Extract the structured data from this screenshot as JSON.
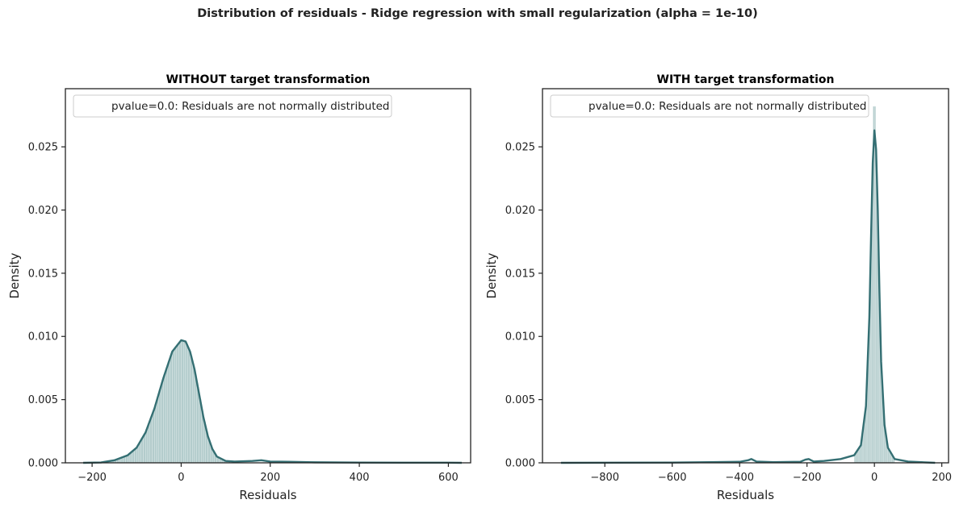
{
  "figure": {
    "suptitle": "Distribution of residuals - Ridge regression with small regularization (alpha = 1e-10)"
  },
  "colors": {
    "kde_line": "#346f73",
    "hist_fill": "#b3cccc",
    "hist_stroke": "#e6efef",
    "axis": "#222222",
    "legend_border": "#cccccc"
  },
  "chart_data": [
    {
      "type": "histogram",
      "title": "WITHOUT target transformation",
      "xlabel": "Residuals",
      "ylabel": "Density",
      "xlim": [
        -260,
        650
      ],
      "ylim": [
        0,
        0.0296
      ],
      "xticks": [
        -200,
        0,
        200,
        400,
        600
      ],
      "xtick_labels": [
        "−200",
        "0",
        "200",
        "400",
        "600"
      ],
      "yticks": [
        0,
        0.005,
        0.01,
        0.015,
        0.02,
        0.025
      ],
      "ytick_labels": [
        "0.000",
        "0.005",
        "0.010",
        "0.015",
        "0.020",
        "0.025"
      ],
      "legend": {
        "label": "pvalue=0.0: Residuals are not normally distributed",
        "position": "upper left"
      },
      "grid": false,
      "hist_range": [
        -190,
        110
      ],
      "bin_width": 5,
      "kde": {
        "x": [
          -220,
          -180,
          -150,
          -120,
          -100,
          -80,
          -60,
          -40,
          -20,
          0,
          10,
          20,
          30,
          40,
          50,
          60,
          70,
          80,
          100,
          120,
          160,
          180,
          200,
          240,
          300,
          400,
          500,
          600,
          630
        ],
        "y": [
          0,
          3e-05,
          0.0002,
          0.0006,
          0.0012,
          0.0024,
          0.0043,
          0.0067,
          0.0088,
          0.0097,
          0.0096,
          0.0088,
          0.0074,
          0.0055,
          0.0036,
          0.0021,
          0.0011,
          0.0005,
          0.00015,
          0.0001,
          0.00015,
          0.0002,
          0.0001,
          8e-05,
          4e-05,
          2e-05,
          1e-05,
          1e-05,
          0
        ]
      }
    },
    {
      "type": "histogram",
      "title": "WITH target transformation",
      "xlabel": "Residuals",
      "ylabel": "Density",
      "xlim": [
        -985,
        220
      ],
      "ylim": [
        0,
        0.0296
      ],
      "xticks": [
        -800,
        -600,
        -400,
        -200,
        0,
        200
      ],
      "xtick_labels": [
        "−800",
        "−600",
        "−400",
        "−200",
        "0",
        "200"
      ],
      "yticks": [
        0,
        0.005,
        0.01,
        0.015,
        0.02,
        0.025
      ],
      "ytick_labels": [
        "0.000",
        "0.005",
        "0.010",
        "0.015",
        "0.020",
        "0.025"
      ],
      "legend": {
        "label": "pvalue=0.0: Residuals are not normally distributed",
        "position": "upper left"
      },
      "grid": false,
      "hist_range": [
        -60,
        60
      ],
      "bin_width": 4,
      "hist_peak": 0.0282,
      "kde": {
        "x": [
          -930,
          -600,
          -400,
          -375,
          -365,
          -350,
          -300,
          -220,
          -205,
          -195,
          -180,
          -150,
          -100,
          -60,
          -40,
          -25,
          -15,
          -10,
          -5,
          0,
          5,
          10,
          15,
          20,
          30,
          40,
          60,
          100,
          180
        ],
        "y": [
          0,
          2e-05,
          8e-05,
          0.0002,
          0.0003,
          0.0001,
          5e-05,
          8e-05,
          0.00025,
          0.0003,
          0.0001,
          0.00015,
          0.0003,
          0.0006,
          0.0014,
          0.0045,
          0.0115,
          0.0178,
          0.0237,
          0.0263,
          0.0248,
          0.02,
          0.0135,
          0.008,
          0.003,
          0.0012,
          0.0003,
          0.0001,
          0
        ]
      }
    }
  ]
}
